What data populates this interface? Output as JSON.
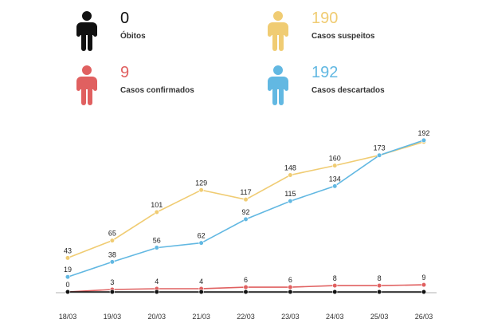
{
  "stats": [
    {
      "value": "0",
      "label": "Óbitos",
      "color": "#111111",
      "icon": "person-icon"
    },
    {
      "value": "190",
      "label": "Casos suspeitos",
      "color": "#f0cc73",
      "icon": "person-icon"
    },
    {
      "value": "9",
      "label": "Casos confirmados",
      "color": "#e06060",
      "icon": "person-icon"
    },
    {
      "value": "192",
      "label": "Casos descartados",
      "color": "#62b8e2",
      "icon": "person-icon"
    }
  ],
  "chart_data": {
    "type": "line",
    "categories": [
      "18/03",
      "19/03",
      "20/03",
      "21/03",
      "22/03",
      "23/03",
      "24/03",
      "25/03",
      "26/03"
    ],
    "ylim": [
      0,
      200
    ],
    "grid": false,
    "series": [
      {
        "name": "Casos suspeitos",
        "color": "#f0cc73",
        "values": [
          43,
          65,
          101,
          129,
          117,
          148,
          160,
          173,
          190
        ],
        "labels": [
          true,
          true,
          true,
          true,
          true,
          true,
          true,
          false,
          false
        ]
      },
      {
        "name": "Casos descartados",
        "color": "#62b8e2",
        "values": [
          19,
          38,
          56,
          62,
          92,
          115,
          134,
          173,
          192
        ],
        "labels": [
          true,
          true,
          true,
          true,
          true,
          true,
          true,
          true,
          true
        ]
      },
      {
        "name": "Casos confirmados",
        "color": "#e06060",
        "values": [
          0,
          3,
          4,
          4,
          6,
          6,
          8,
          8,
          9
        ],
        "labels": [
          false,
          true,
          true,
          true,
          true,
          true,
          true,
          true,
          true
        ]
      },
      {
        "name": "Óbitos",
        "color": "#111111",
        "values": [
          0,
          0,
          0,
          0,
          0,
          0,
          0,
          0,
          0
        ],
        "labels": [
          true,
          false,
          false,
          false,
          false,
          false,
          false,
          false,
          false
        ]
      }
    ]
  }
}
